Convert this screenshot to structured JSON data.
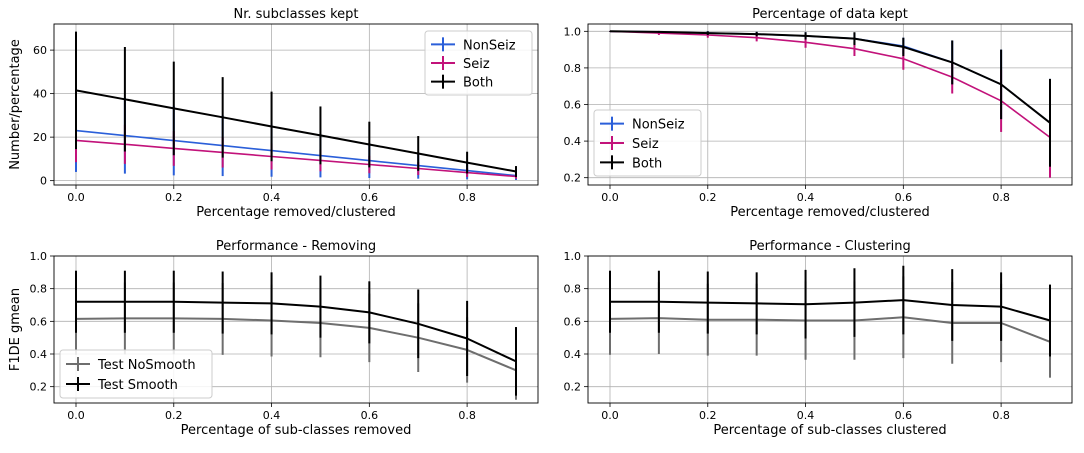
{
  "chart_data": [
    {
      "id": "p1",
      "type": "line",
      "title": "Nr. subclasses kept",
      "xlabel": "Percentage removed/clustered",
      "ylabel": "Number/percentage",
      "xlim": [
        -0.045,
        0.945
      ],
      "ylim": [
        -2,
        72
      ],
      "xticks": [
        0.0,
        0.2,
        0.4,
        0.6,
        0.8
      ],
      "yticks": [
        0,
        20,
        40,
        60
      ],
      "xtick_labels": [
        "0.0",
        "0.2",
        "0.4",
        "0.6",
        "0.8"
      ],
      "ytick_labels": [
        "0",
        "20",
        "40",
        "60"
      ],
      "grid": true,
      "legend_position": "top-right",
      "x": [
        0.0,
        0.1,
        0.2,
        0.3,
        0.4,
        0.5,
        0.6,
        0.7,
        0.8,
        0.9
      ],
      "series": [
        {
          "name": "NonSeiz",
          "color": "#2b5fd9",
          "width": 1.6,
          "values": [
            23,
            20.7,
            18.4,
            16.1,
            13.8,
            11.5,
            9.2,
            6.9,
            4.6,
            2.3
          ],
          "errors": [
            19,
            17.5,
            16,
            14,
            12,
            10,
            8,
            6,
            4,
            2
          ]
        },
        {
          "name": "Seiz",
          "color": "#c2127a",
          "width": 1.6,
          "values": [
            18.5,
            16.7,
            14.8,
            13.0,
            11.1,
            9.3,
            7.4,
            5.6,
            3.7,
            1.9
          ],
          "errors": [
            10,
            9,
            8,
            7,
            6,
            5,
            4,
            3,
            2,
            1
          ]
        },
        {
          "name": "Both",
          "color": "#000000",
          "width": 2,
          "values": [
            41.5,
            37.4,
            33.2,
            29.1,
            24.9,
            20.8,
            16.6,
            12.5,
            8.3,
            4.2
          ],
          "errors": [
            27,
            24,
            21.5,
            18.5,
            16,
            13.3,
            10.5,
            8,
            5,
            2.5
          ]
        }
      ]
    },
    {
      "id": "p2",
      "type": "line",
      "title": "Percentage of data kept",
      "xlabel": "Percentage removed/clustered",
      "ylabel": "",
      "xlim": [
        -0.045,
        0.945
      ],
      "ylim": [
        0.16,
        1.04
      ],
      "xticks": [
        0.0,
        0.2,
        0.4,
        0.6,
        0.8
      ],
      "yticks": [
        0.2,
        0.4,
        0.6,
        0.8,
        1.0
      ],
      "xtick_labels": [
        "0.0",
        "0.2",
        "0.4",
        "0.6",
        "0.8"
      ],
      "ytick_labels": [
        "0.2",
        "0.4",
        "0.6",
        "0.8",
        "1.0"
      ],
      "grid": true,
      "legend_position": "bottom-left",
      "x": [
        0.0,
        0.1,
        0.2,
        0.3,
        0.4,
        0.5,
        0.6,
        0.7,
        0.8,
        0.9
      ],
      "series": [
        {
          "name": "NonSeiz",
          "color": "#2b5fd9",
          "width": 1.6,
          "values": [
            1.0,
            0.997,
            0.99,
            0.985,
            0.975,
            0.96,
            0.92,
            0.83,
            0.71,
            0.5
          ],
          "errors": [
            0.002,
            0.005,
            0.01,
            0.012,
            0.02,
            0.03,
            0.045,
            0.12,
            0.19,
            0.24
          ]
        },
        {
          "name": "Seiz",
          "color": "#c2127a",
          "width": 1.6,
          "values": [
            1.0,
            0.99,
            0.98,
            0.965,
            0.94,
            0.905,
            0.85,
            0.75,
            0.62,
            0.42
          ],
          "errors": [
            0.002,
            0.01,
            0.015,
            0.02,
            0.03,
            0.04,
            0.06,
            0.09,
            0.17,
            0.22
          ]
        },
        {
          "name": "Both",
          "color": "#000000",
          "width": 2,
          "values": [
            1.0,
            0.997,
            0.99,
            0.985,
            0.975,
            0.96,
            0.915,
            0.83,
            0.71,
            0.5
          ],
          "errors": [
            0.002,
            0.005,
            0.01,
            0.012,
            0.02,
            0.035,
            0.05,
            0.12,
            0.19,
            0.24
          ]
        }
      ]
    },
    {
      "id": "p3",
      "type": "line",
      "title": "Performance - Removing",
      "xlabel": "Percentage of sub-classes removed",
      "ylabel": "F1DE gmean",
      "xlim": [
        -0.045,
        0.945
      ],
      "ylim": [
        0.1,
        1.0
      ],
      "xticks": [
        0.0,
        0.2,
        0.4,
        0.6,
        0.8
      ],
      "yticks": [
        0.2,
        0.4,
        0.6,
        0.8,
        1.0
      ],
      "xtick_labels": [
        "0.0",
        "0.2",
        "0.4",
        "0.6",
        "0.8"
      ],
      "ytick_labels": [
        "0.2",
        "0.4",
        "0.6",
        "0.8",
        "1.0"
      ],
      "grid": true,
      "legend_position": "bottom-left",
      "x": [
        0.0,
        0.1,
        0.2,
        0.3,
        0.4,
        0.5,
        0.6,
        0.7,
        0.8,
        0.9
      ],
      "series": [
        {
          "name": "Test NoSmooth",
          "color": "#6e6e6e",
          "width": 2,
          "values": [
            0.615,
            0.618,
            0.618,
            0.615,
            0.605,
            0.59,
            0.56,
            0.5,
            0.425,
            0.3
          ],
          "errors": [
            0.22,
            0.22,
            0.22,
            0.22,
            0.22,
            0.21,
            0.21,
            0.21,
            0.2,
            0.18
          ]
        },
        {
          "name": "Test Smooth",
          "color": "#000000",
          "width": 2,
          "values": [
            0.72,
            0.72,
            0.72,
            0.715,
            0.71,
            0.69,
            0.655,
            0.585,
            0.495,
            0.355
          ],
          "errors": [
            0.19,
            0.19,
            0.19,
            0.19,
            0.19,
            0.19,
            0.19,
            0.21,
            0.23,
            0.21
          ]
        }
      ]
    },
    {
      "id": "p4",
      "type": "line",
      "title": "Performance - Clustering",
      "xlabel": "Percentage of sub-classes clustered",
      "ylabel": "",
      "xlim": [
        -0.045,
        0.945
      ],
      "ylim": [
        0.1,
        1.0
      ],
      "xticks": [
        0.0,
        0.2,
        0.4,
        0.6,
        0.8
      ],
      "yticks": [
        0.2,
        0.4,
        0.6,
        0.8,
        1.0
      ],
      "xtick_labels": [
        "0.0",
        "0.2",
        "0.4",
        "0.6",
        "0.8"
      ],
      "ytick_labels": [
        "0.2",
        "0.4",
        "0.6",
        "0.8",
        "1.0"
      ],
      "grid": true,
      "legend_position": "none",
      "x": [
        0.0,
        0.1,
        0.2,
        0.3,
        0.4,
        0.5,
        0.6,
        0.7,
        0.8,
        0.9
      ],
      "series": [
        {
          "name": "Test NoSmooth",
          "color": "#6e6e6e",
          "width": 2,
          "values": [
            0.615,
            0.62,
            0.61,
            0.61,
            0.605,
            0.605,
            0.625,
            0.59,
            0.59,
            0.475
          ],
          "errors": [
            0.22,
            0.22,
            0.22,
            0.22,
            0.24,
            0.24,
            0.25,
            0.25,
            0.24,
            0.22
          ]
        },
        {
          "name": "Test Smooth",
          "color": "#000000",
          "width": 2,
          "values": [
            0.72,
            0.72,
            0.715,
            0.71,
            0.705,
            0.715,
            0.73,
            0.7,
            0.69,
            0.605
          ],
          "errors": [
            0.19,
            0.19,
            0.19,
            0.19,
            0.21,
            0.21,
            0.21,
            0.22,
            0.21,
            0.22
          ]
        }
      ]
    }
  ]
}
